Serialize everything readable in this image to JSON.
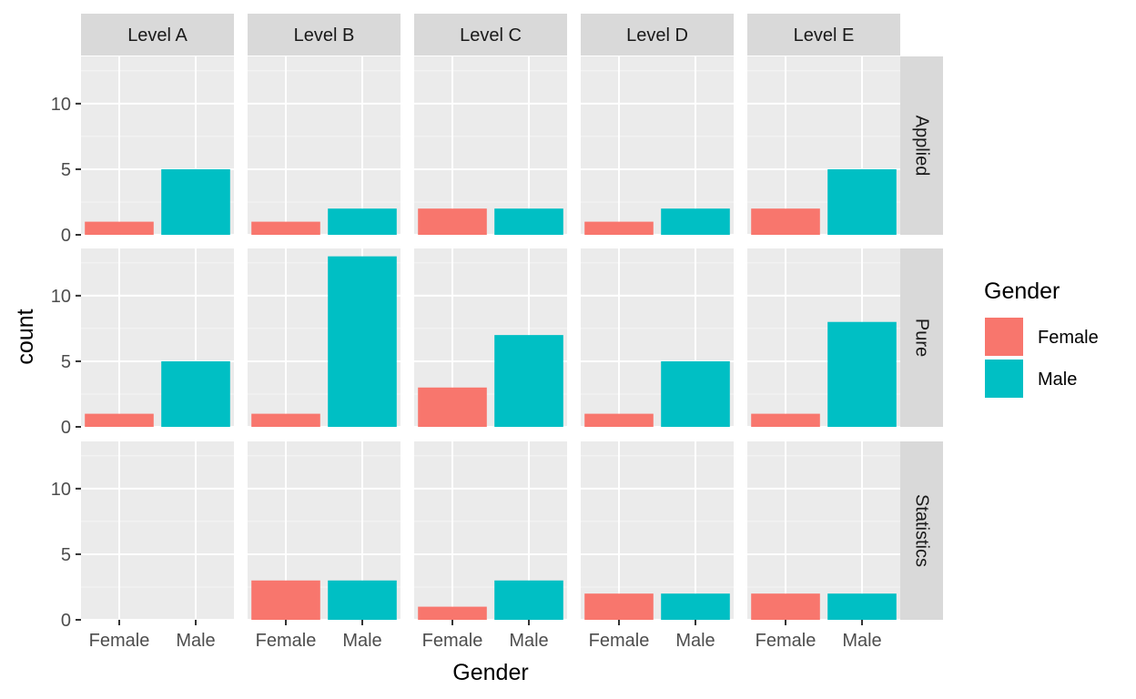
{
  "chart_data": {
    "type": "bar",
    "facet_columns": [
      "Level A",
      "Level B",
      "Level C",
      "Level D",
      "Level E"
    ],
    "facet_rows": [
      "Applied",
      "Pure",
      "Statistics"
    ],
    "categories": [
      "Female",
      "Male"
    ],
    "xlabel": "Gender",
    "ylabel": "count",
    "ylim": [
      0,
      13.6
    ],
    "yticks": [
      0,
      5,
      10
    ],
    "grid": true,
    "legend": {
      "title": "Gender",
      "position": "right",
      "entries": [
        {
          "name": "Female",
          "color": "#F8766D"
        },
        {
          "name": "Male",
          "color": "#00BFC4"
        }
      ]
    },
    "panels": [
      {
        "row": "Applied",
        "column": "Level A",
        "values": [
          1,
          5
        ]
      },
      {
        "row": "Applied",
        "column": "Level B",
        "values": [
          1,
          2
        ]
      },
      {
        "row": "Applied",
        "column": "Level C",
        "values": [
          2,
          2
        ]
      },
      {
        "row": "Applied",
        "column": "Level D",
        "values": [
          1,
          2
        ]
      },
      {
        "row": "Applied",
        "column": "Level E",
        "values": [
          2,
          5
        ]
      },
      {
        "row": "Pure",
        "column": "Level A",
        "values": [
          1,
          5
        ]
      },
      {
        "row": "Pure",
        "column": "Level B",
        "values": [
          1,
          13
        ]
      },
      {
        "row": "Pure",
        "column": "Level C",
        "values": [
          3,
          7
        ]
      },
      {
        "row": "Pure",
        "column": "Level D",
        "values": [
          1,
          5
        ]
      },
      {
        "row": "Pure",
        "column": "Level E",
        "values": [
          1,
          8
        ]
      },
      {
        "row": "Statistics",
        "column": "Level A",
        "values": [
          0,
          0
        ]
      },
      {
        "row": "Statistics",
        "column": "Level B",
        "values": [
          3,
          3
        ]
      },
      {
        "row": "Statistics",
        "column": "Level C",
        "values": [
          1,
          3
        ]
      },
      {
        "row": "Statistics",
        "column": "Level D",
        "values": [
          2,
          2
        ]
      },
      {
        "row": "Statistics",
        "column": "Level E",
        "values": [
          2,
          2
        ]
      }
    ]
  }
}
